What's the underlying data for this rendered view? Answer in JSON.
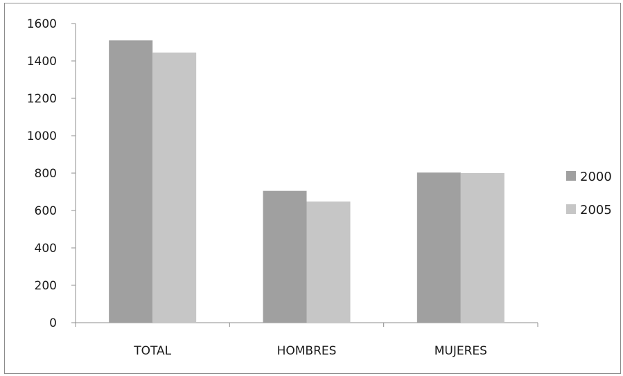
{
  "chart_data": {
    "type": "bar",
    "categories": [
      "TOTAL",
      "HOMBRES",
      "MUJERES"
    ],
    "series": [
      {
        "name": "2000",
        "values": [
          1510,
          705,
          803
        ],
        "color": "#a0a0a0"
      },
      {
        "name": "2005",
        "values": [
          1445,
          648,
          800
        ],
        "color": "#c6c6c6"
      }
    ],
    "y_ticks": [
      0,
      200,
      400,
      600,
      800,
      1000,
      1200,
      1400,
      1600
    ],
    "ylim": [
      0,
      1600
    ],
    "grid": false,
    "legend_position": "right",
    "title": "",
    "xlabel": "",
    "ylabel": ""
  }
}
